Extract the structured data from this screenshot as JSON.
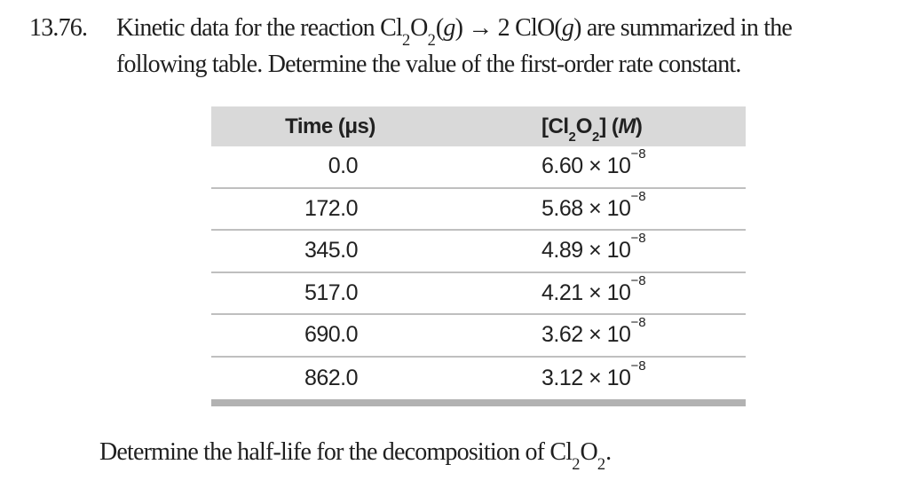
{
  "problem": {
    "number": "13.76.",
    "statement_html": "Kinetic data for the reaction Cl<sub>2</sub>O<sub>2</sub>(<i>g</i>) → 2 ClO(<i>g</i>) are summarized in the<br>following table. Determine the value of the first-order rate constant."
  },
  "table": {
    "headers": [
      {
        "html": "Time (μs)",
        "text": "Time (μs)"
      },
      {
        "html": "[Cl<sub>2</sub>O<sub>2</sub>] (<i>M</i>)",
        "text": "[Cl2O2] (M)"
      }
    ],
    "rows": [
      {
        "time": "0.0",
        "conc_html": "6.60 × 10<sup>−8</sup>",
        "conc_text": "6.60 × 10−8"
      },
      {
        "time": "172.0",
        "conc_html": "5.68 × 10<sup>−8</sup>",
        "conc_text": "5.68 × 10−8"
      },
      {
        "time": "345.0",
        "conc_html": "4.89 × 10<sup>−8</sup>",
        "conc_text": "4.89 × 10−8"
      },
      {
        "time": "517.0",
        "conc_html": "4.21 × 10<sup>−8</sup>",
        "conc_text": "4.21 × 10−8"
      },
      {
        "time": "690.0",
        "conc_html": "3.62 × 10<sup>−8</sup>",
        "conc_text": "3.62 × 10−8"
      },
      {
        "time": "862.0",
        "conc_html": "3.12 × 10<sup>−8</sup>",
        "conc_text": "3.12 × 10−8"
      }
    ]
  },
  "footer": {
    "instruction_html": "Determine the half-life for the decomposition of Cl<sub>2</sub>O<sub>2</sub>."
  },
  "colors": {
    "table_header_bg": "#d9d9d9",
    "row_divider": "#bfbfbf",
    "table_bottom_bar": "#b2b2b2",
    "text": "#1f1f1f"
  }
}
